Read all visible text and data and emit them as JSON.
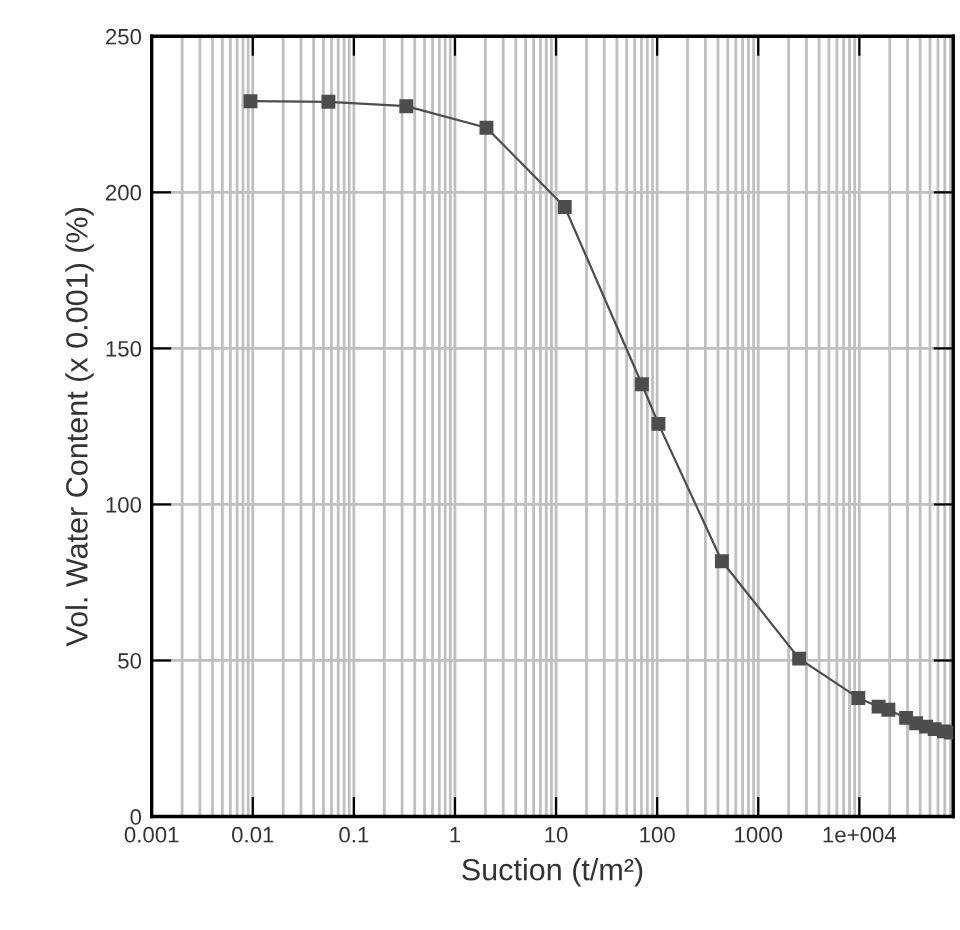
{
  "chart_data": {
    "type": "line",
    "xlabel": "Suction (t/m²)",
    "ylabel": "Vol. Water Content (x 0.001) (%)",
    "log": "x",
    "grid": true,
    "marker": "square",
    "line_style": "solid",
    "xlim": [
      0.001,
      85000
    ],
    "xticks": [
      0.001,
      0.01,
      0.1,
      1,
      10,
      100,
      1000,
      {
        "value": 10000,
        "label": "1e+004"
      }
    ],
    "ylim": [
      0,
      250
    ],
    "yticks": [
      0,
      50,
      100,
      150,
      200,
      250
    ],
    "series": [
      {
        "color": "#4d4d4d",
        "x": [
          0.0095,
          0.056,
          0.33,
          2.05,
          12.2,
          70.7,
          103,
          437,
          2540,
          9770,
          15500,
          19400,
          29000,
          36500,
          45700,
          55600,
          68700,
          81000
        ],
        "values": [
          229.2,
          229,
          227.6,
          220.7,
          195.3,
          138.5,
          125.8,
          81.8,
          50.6,
          38,
          35.2,
          34.2,
          31.6,
          29.9,
          28.8,
          28,
          27.3,
          26.9
        ]
      }
    ]
  }
}
